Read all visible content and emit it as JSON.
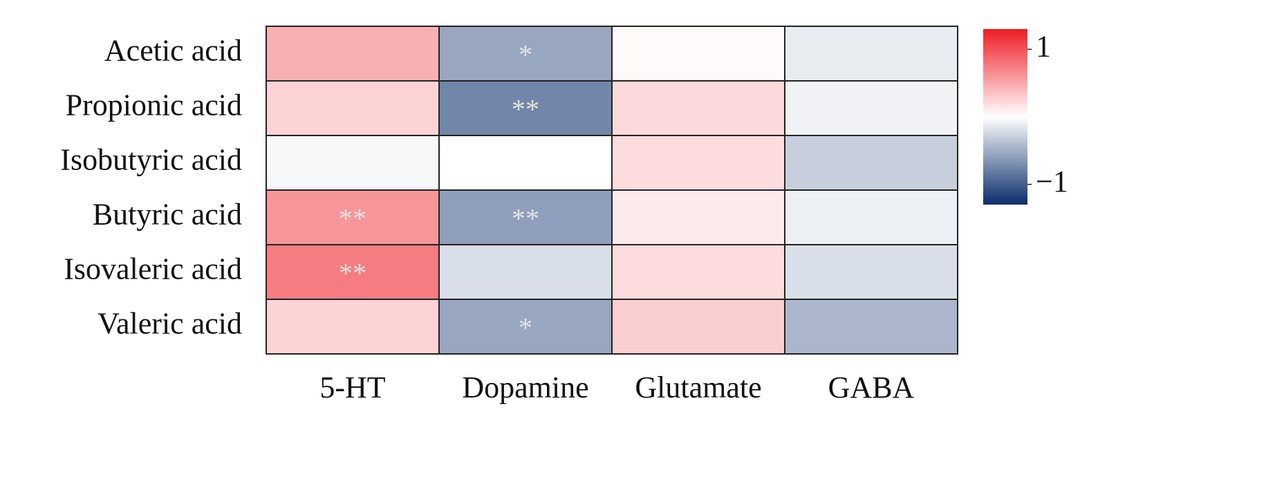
{
  "chart_data": {
    "type": "heatmap",
    "x": [
      "5-HT",
      "Dopamine",
      "Glutamate",
      "GABA"
    ],
    "y": [
      "Acetic acid",
      "Propionic acid",
      "Isobutyric acid",
      "Butyric acid",
      "Isovaleric acid",
      "Valeric acid"
    ],
    "values": [
      [
        0.45,
        -0.55,
        0.03,
        -0.12
      ],
      [
        0.25,
        -0.75,
        0.22,
        -0.08
      ],
      [
        -0.05,
        0.0,
        0.2,
        -0.3
      ],
      [
        0.6,
        -0.6,
        0.12,
        -0.1
      ],
      [
        0.75,
        -0.2,
        0.2,
        -0.2
      ],
      [
        0.25,
        -0.55,
        0.28,
        -0.45
      ]
    ],
    "significance": [
      [
        null,
        "*",
        null,
        null
      ],
      [
        null,
        "**",
        null,
        null
      ],
      [
        null,
        null,
        null,
        null
      ],
      [
        "**",
        "**",
        null,
        null
      ],
      [
        "**",
        null,
        null,
        null
      ],
      [
        null,
        "*",
        null,
        null
      ]
    ],
    "colorscale": [
      "#0b2d6b",
      "#ffffff",
      "#ee1c25"
    ],
    "clim": [
      -1.3,
      1.3
    ],
    "cticks": [
      1,
      {
        "value": -1,
        "label": "−1"
      }
    ]
  }
}
